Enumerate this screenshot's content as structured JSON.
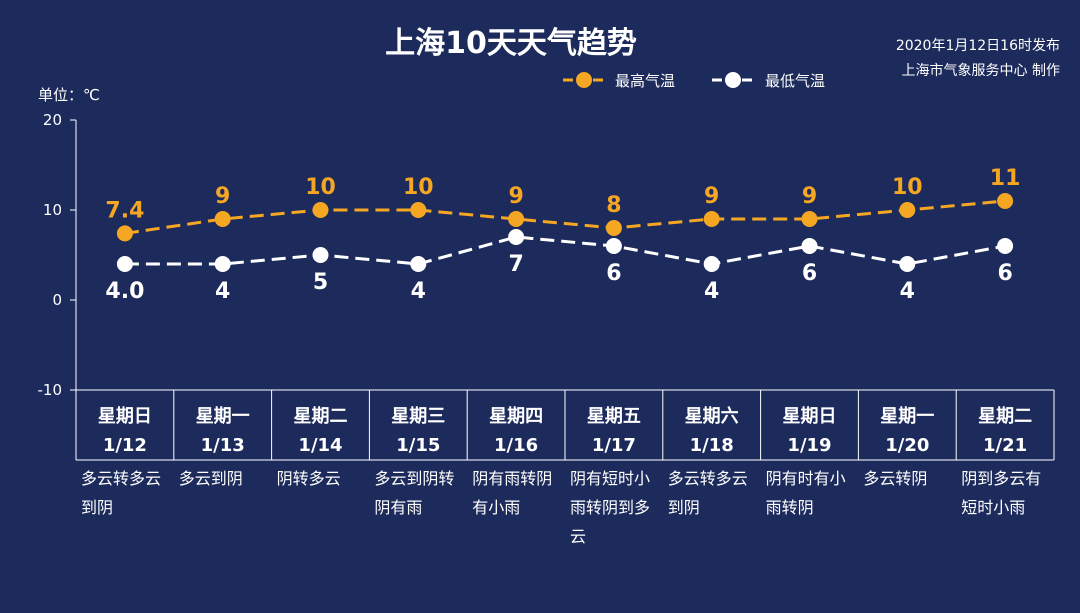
{
  "header": {
    "title": "上海10天天气趋势",
    "publish_time": "2020年1月12日16时发布",
    "producer": "上海市气象服务中心 制作"
  },
  "colors": {
    "background": "#1d2b5c",
    "high": "#f5a623",
    "low": "#ffffff"
  },
  "chart_data": {
    "type": "line",
    "title": "上海10天天气趋势",
    "unit_label": "单位：℃",
    "ylim": [
      -10,
      20
    ],
    "yticks": [
      "20",
      "10",
      "0",
      "-10"
    ],
    "legend_position": "top-center",
    "grid": false,
    "categories": [
      {
        "day": "星期日",
        "date": "1/12",
        "weather": [
          "多云转多云",
          "到阴"
        ]
      },
      {
        "day": "星期一",
        "date": "1/13",
        "weather": [
          "多云到阴"
        ]
      },
      {
        "day": "星期二",
        "date": "1/14",
        "weather": [
          "阴转多云"
        ]
      },
      {
        "day": "星期三",
        "date": "1/15",
        "weather": [
          "多云到阴转",
          "阴有雨"
        ]
      },
      {
        "day": "星期四",
        "date": "1/16",
        "weather": [
          "阴有雨转阴",
          "有小雨"
        ]
      },
      {
        "day": "星期五",
        "date": "1/17",
        "weather": [
          "阴有短时小",
          "雨转阴到多",
          "云"
        ]
      },
      {
        "day": "星期六",
        "date": "1/18",
        "weather": [
          "多云转多云",
          "到阴"
        ]
      },
      {
        "day": "星期日",
        "date": "1/19",
        "weather": [
          "阴有时有小",
          "雨转阴"
        ]
      },
      {
        "day": "星期一",
        "date": "1/20",
        "weather": [
          "多云转阴"
        ]
      },
      {
        "day": "星期二",
        "date": "1/21",
        "weather": [
          "阴到多云有",
          "短时小雨"
        ]
      }
    ],
    "series": [
      {
        "name": "最高气温",
        "values": [
          7.4,
          9,
          10,
          10,
          9,
          8,
          9,
          9,
          10,
          11
        ],
        "labels": [
          "7.4",
          "9",
          "10",
          "10",
          "9",
          "8",
          "9",
          "9",
          "10",
          "11"
        ]
      },
      {
        "name": "最低气温",
        "values": [
          4.0,
          4,
          5,
          4,
          7,
          6,
          4,
          6,
          4,
          6
        ],
        "labels": [
          "4.0",
          "4",
          "5",
          "4",
          "7",
          "6",
          "4",
          "6",
          "4",
          "6"
        ]
      }
    ]
  }
}
